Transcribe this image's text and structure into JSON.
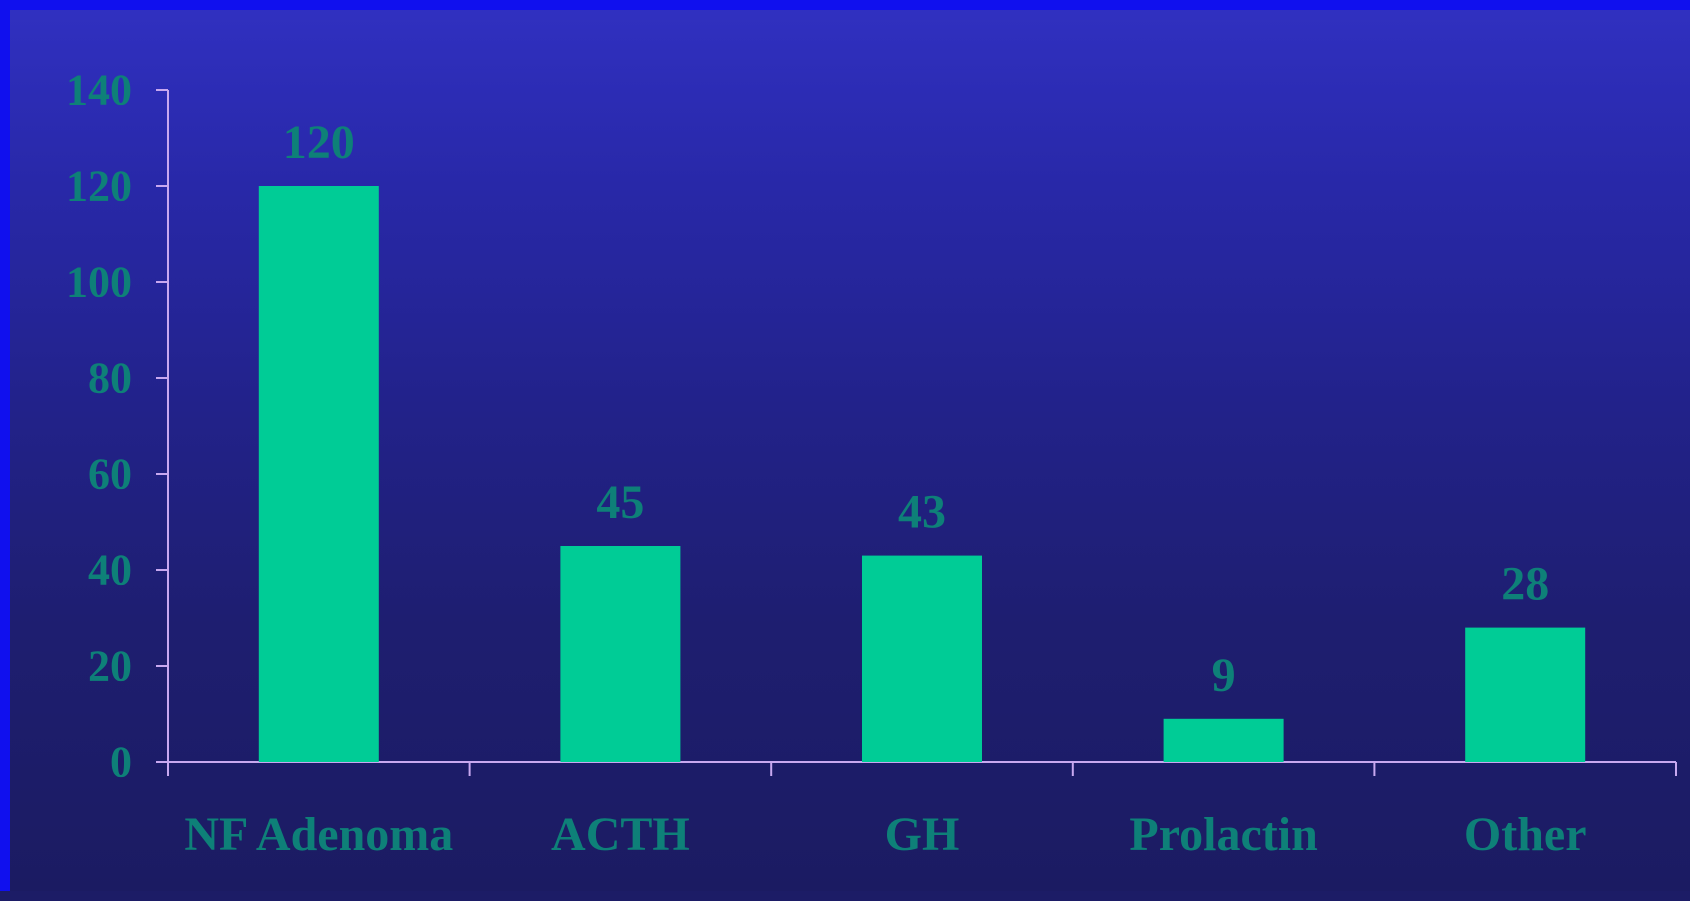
{
  "colors": {
    "bar": "#00cc96",
    "text": "#0e8078",
    "axis": "#c8a8f0",
    "border": "#1010ee",
    "background_top": "#3030c0",
    "background_bottom": "#1b1b62"
  },
  "chart_data": {
    "type": "bar",
    "title": "",
    "xlabel": "",
    "ylabel": "",
    "categories": [
      "NF Adenoma",
      "ACTH",
      "GH",
      "Prolactin",
      "Other"
    ],
    "values": [
      120,
      45,
      43,
      9,
      28
    ],
    "data_labels": [
      "120",
      "45",
      "43",
      "9",
      "28"
    ],
    "ylim": [
      0,
      140
    ],
    "yticks": [
      0,
      20,
      40,
      60,
      80,
      100,
      120,
      140
    ],
    "ytick_labels": [
      "0",
      "20",
      "40",
      "60",
      "80",
      "100",
      "120",
      "140"
    ],
    "grid": false,
    "legend": "none"
  }
}
